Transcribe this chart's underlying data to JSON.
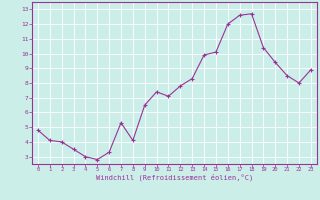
{
  "x": [
    0,
    1,
    2,
    3,
    4,
    5,
    6,
    7,
    8,
    9,
    10,
    11,
    12,
    13,
    14,
    15,
    16,
    17,
    18,
    19,
    20,
    21,
    22,
    23
  ],
  "y": [
    4.8,
    4.1,
    4.0,
    3.5,
    3.0,
    2.8,
    3.3,
    5.3,
    4.1,
    6.5,
    7.4,
    7.1,
    7.8,
    8.3,
    9.9,
    10.1,
    12.0,
    12.6,
    12.7,
    10.4,
    9.4,
    8.5,
    8.0,
    8.9
  ],
  "line_color": "#993399",
  "marker": "+",
  "marker_size": 3,
  "bg_color": "#cceee8",
  "grid_color": "#ffffff",
  "xlabel": "Windchill (Refroidissement éolien,°C)",
  "ylabel_ticks": [
    3,
    4,
    5,
    6,
    7,
    8,
    9,
    10,
    11,
    12,
    13
  ],
  "xticks": [
    0,
    1,
    2,
    3,
    4,
    5,
    6,
    7,
    8,
    9,
    10,
    11,
    12,
    13,
    14,
    15,
    16,
    17,
    18,
    19,
    20,
    21,
    22,
    23
  ],
  "ylim": [
    2.5,
    13.5
  ],
  "xlim": [
    -0.5,
    23.5
  ],
  "tick_color": "#993399",
  "xlabel_color": "#993399",
  "axis_color": "#993399",
  "spine_color": "#993399"
}
